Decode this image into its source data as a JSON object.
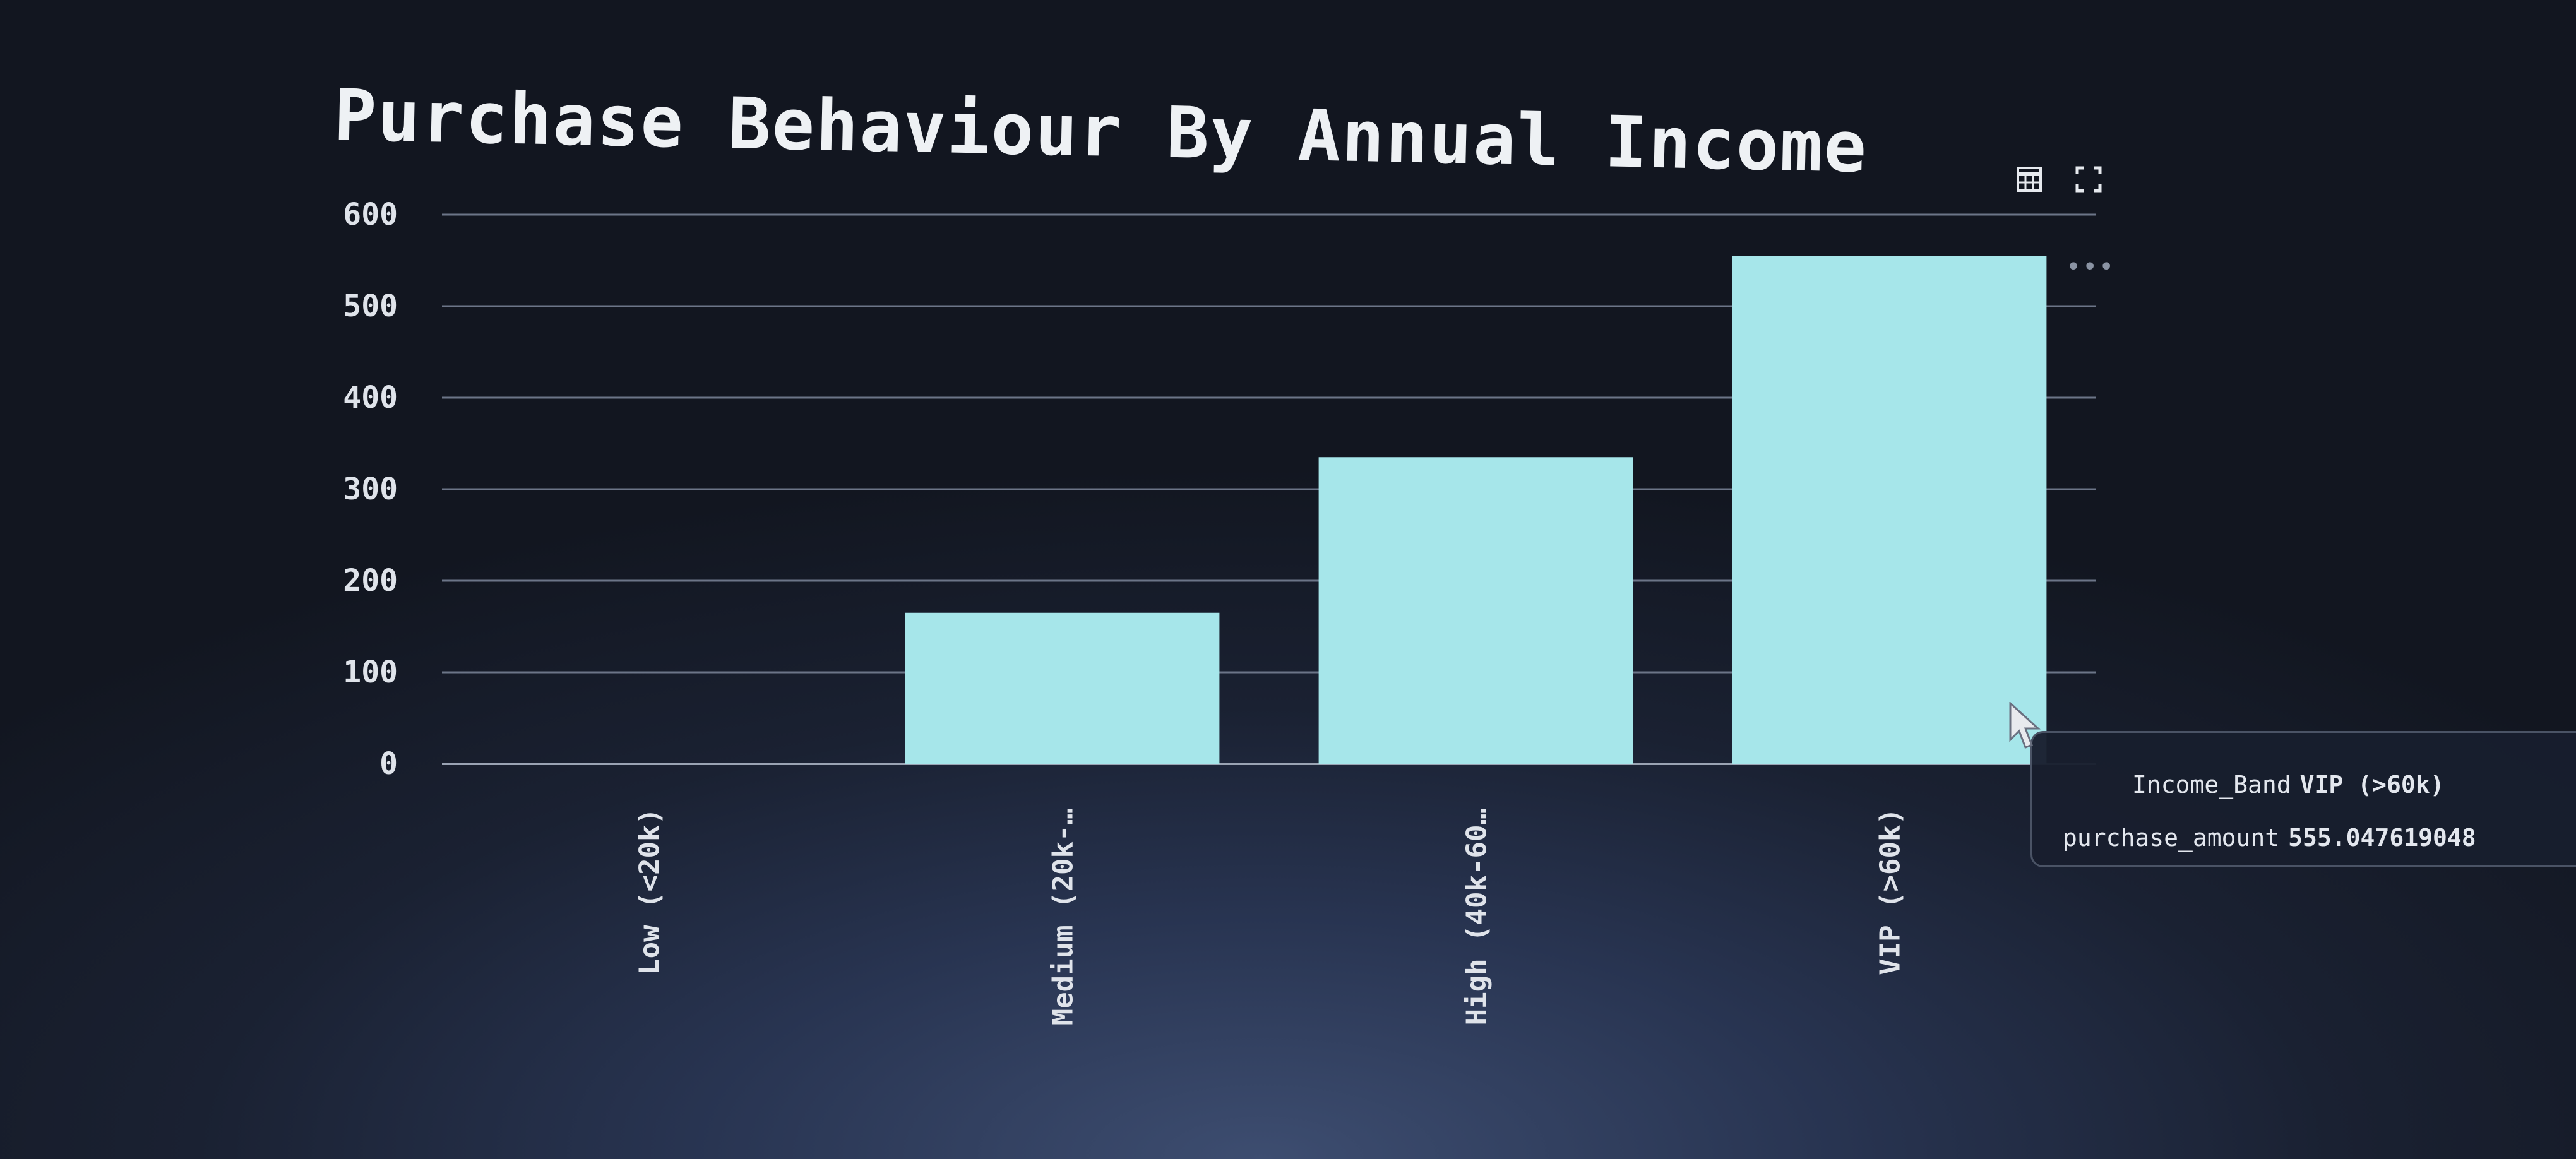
{
  "chart_data": {
    "type": "bar",
    "title": "Purchase Behaviour By Annual Income",
    "categories": [
      "Low (<20k)",
      "Medium (20k-…",
      "High (40k-60…",
      "VIP (>60k)"
    ],
    "values": [
      0,
      165,
      335,
      555.047619048
    ],
    "ylim": [
      0,
      600
    ],
    "yticks": [
      0,
      100,
      200,
      300,
      400,
      500,
      600
    ],
    "grid": true,
    "bar_color": "#a6e6ea",
    "xlabel": "",
    "ylabel": ""
  },
  "tooltip": {
    "row1_key": "Income_Band",
    "row1_value": "VIP (>60k)",
    "row2_key": "purchase_amount",
    "row2_value": "555.047619048"
  },
  "toolbar": {
    "icons": [
      "table-icon",
      "fullscreen-icon",
      "more-options-icon"
    ]
  }
}
